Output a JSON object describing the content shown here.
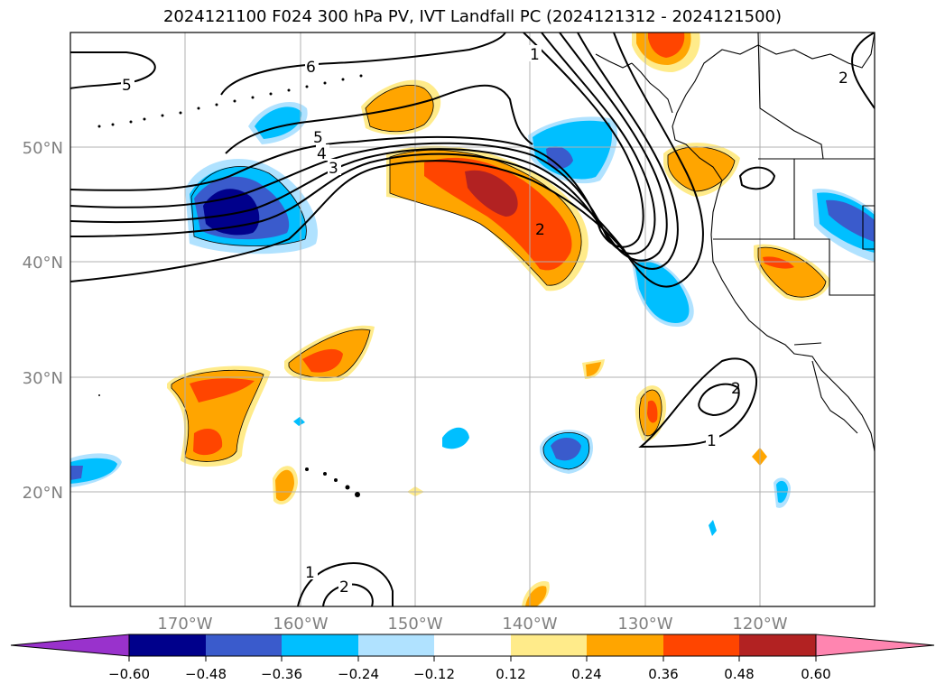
{
  "title": "2024121100 F024 300 hPa PV, IVT Landfall PC (2024121312 - 2024121500)",
  "lat_labels": [
    "50°N",
    "40°N",
    "30°N",
    "20°N"
  ],
  "lon_labels": [
    "170°W",
    "160°W",
    "150°W",
    "140°W",
    "130°W",
    "120°W"
  ],
  "colorbar": {
    "ticks": [
      "−0.60",
      "−0.48",
      "−0.36",
      "−0.24",
      "−0.12",
      "0.12",
      "0.24",
      "0.36",
      "0.48",
      "0.60"
    ],
    "colors": [
      "#9932cc",
      "#00008b",
      "#3a5bcc",
      "#00bfff",
      "#b0e2ff",
      "#ffffff",
      "#ffeb8a",
      "#ffa500",
      "#ff4500",
      "#b22222",
      "#ff85b0"
    ]
  },
  "contour_labels": [
    "1",
    "2",
    "3",
    "4",
    "5",
    "6",
    "5",
    "2",
    "1",
    "2",
    "1",
    "2"
  ],
  "colors": {
    "grid": "#b0b0b0",
    "axis_text": "#808080",
    "contour": "#000000"
  }
}
